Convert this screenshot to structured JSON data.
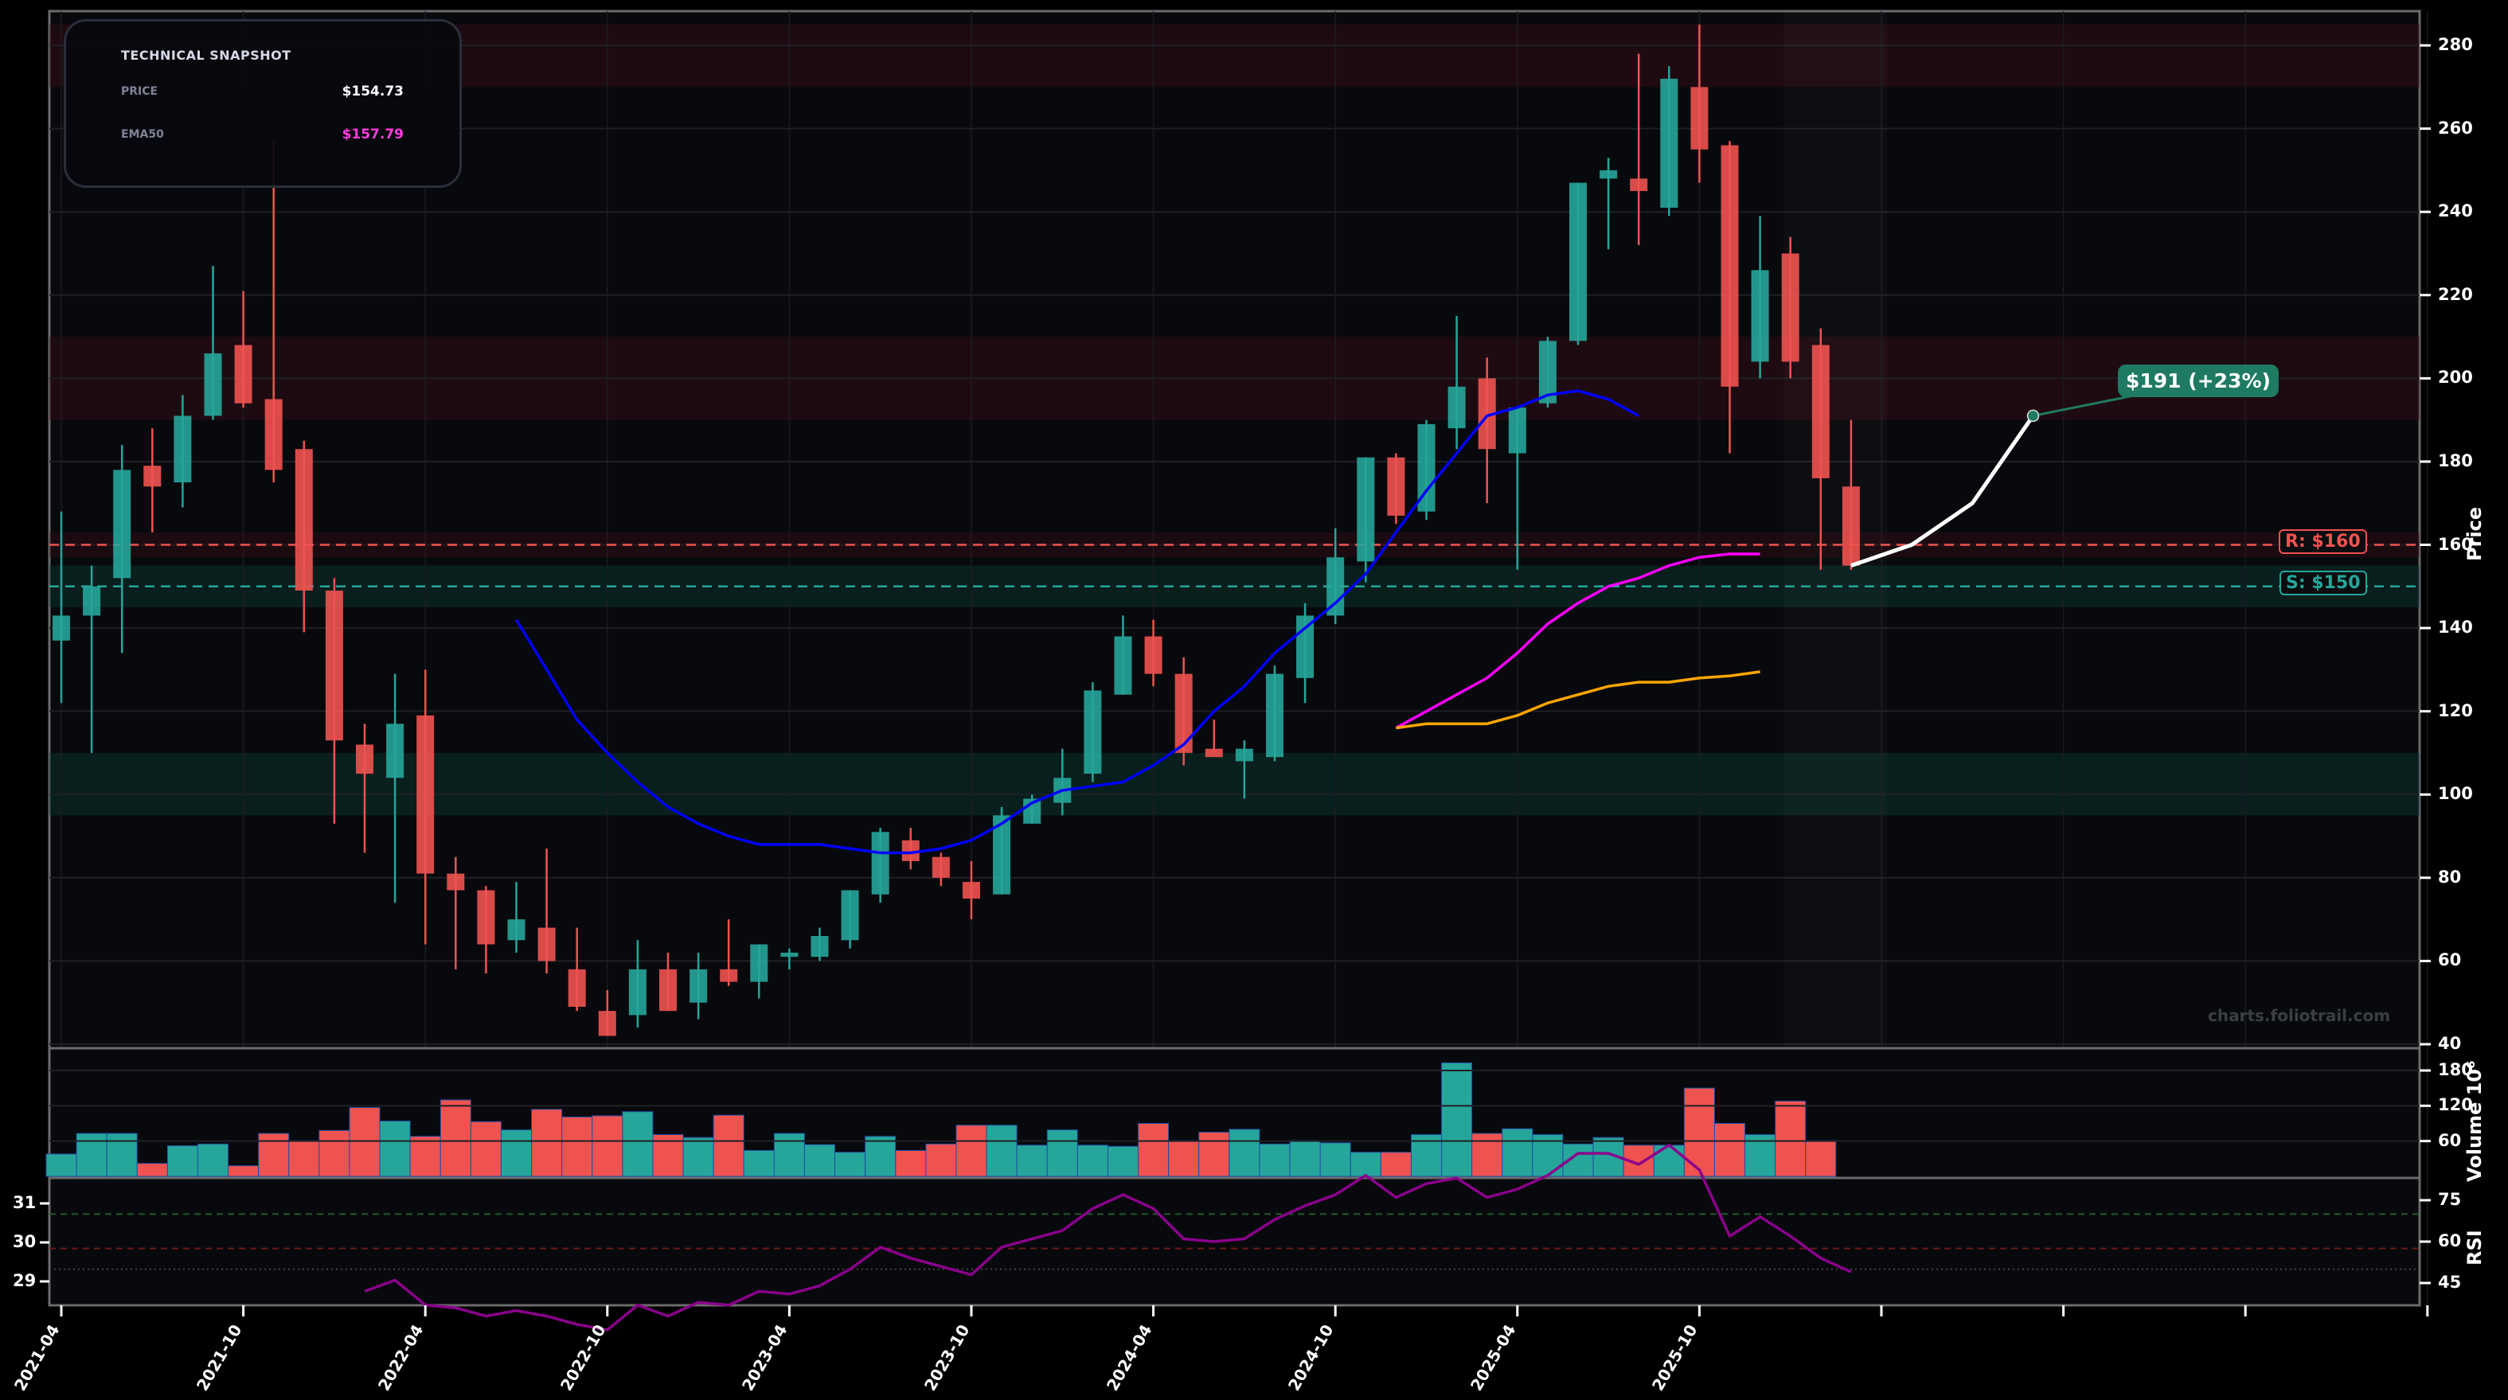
{
  "snapshot": {
    "title": "TECHNICAL SNAPSHOT",
    "price_label": "PRICE",
    "price_value": "$154.73",
    "ema50_label": "EMA50",
    "ema50_value": "$157.79"
  },
  "annotations": {
    "resistance_label": "R: $160",
    "support_label": "S: $150",
    "target_label": "$191 (+23%)",
    "watermark": "charts.foliotrail.com"
  },
  "axes": {
    "price_label": "Price",
    "volume_label": "Volume  10⁶",
    "rsi_label": "RSI",
    "price_ticks": [
      "280",
      "260",
      "240",
      "220",
      "200",
      "180",
      "160",
      "140",
      "120",
      "100",
      "80",
      "60",
      "40"
    ],
    "volume_ticks": [
      "180",
      "120",
      "60"
    ],
    "rsi_right_ticks": [
      "75",
      "60",
      "45"
    ],
    "rsi_left_ticks": [
      "31",
      "30",
      "29"
    ],
    "x_ticks": [
      "2021-04",
      "2021-10",
      "2022-04",
      "2022-10",
      "2023-04",
      "2023-10",
      "2024-04",
      "2024-10",
      "2025-04",
      "2025-10"
    ]
  },
  "colors": {
    "up": "#26a69a",
    "down": "#ef5350",
    "ema_blue": "#0000ff",
    "ema_magenta": "#ff00ff",
    "ema_orange": "#ffa500",
    "rsi": "#8b008b",
    "target": "#1e7a62",
    "background": "#08090d"
  },
  "chart_data": {
    "type": "candlestick",
    "title": "",
    "xlabel": "",
    "ylabel": "Price",
    "ylim": [
      40,
      285
    ],
    "x": [
      "2021-04",
      "2021-05",
      "2021-06",
      "2021-07",
      "2021-08",
      "2021-09",
      "2021-10",
      "2021-11",
      "2021-12",
      "2022-01",
      "2022-02",
      "2022-03",
      "2022-04",
      "2022-05",
      "2022-06",
      "2022-07",
      "2022-08",
      "2022-09",
      "2022-10",
      "2022-11",
      "2022-12",
      "2023-01",
      "2023-02",
      "2023-03",
      "2023-04",
      "2023-05",
      "2023-06",
      "2023-07",
      "2023-08",
      "2023-09",
      "2023-10",
      "2023-11",
      "2023-12",
      "2024-01",
      "2024-02",
      "2024-03",
      "2024-04",
      "2024-05",
      "2024-06",
      "2024-07",
      "2024-08",
      "2024-09",
      "2024-10",
      "2024-11",
      "2024-12",
      "2025-01",
      "2025-02",
      "2025-03",
      "2025-04",
      "2025-05",
      "2025-06",
      "2025-07",
      "2025-08",
      "2025-09",
      "2025-10",
      "2025-11",
      "2025-12",
      "2026-01",
      "2026-02",
      "2026-03"
    ],
    "ohlc": [
      [
        137,
        168,
        122,
        143
      ],
      [
        143,
        155,
        110,
        150
      ],
      [
        152,
        184,
        134,
        178
      ],
      [
        179,
        188,
        163,
        174
      ],
      [
        175,
        196,
        169,
        191
      ],
      [
        191,
        227,
        190,
        206
      ],
      [
        208,
        221,
        193,
        194
      ],
      [
        195,
        257,
        175,
        178
      ],
      [
        183,
        185,
        139,
        149
      ],
      [
        149,
        152,
        93,
        113
      ],
      [
        112,
        117,
        86,
        105
      ],
      [
        104,
        129,
        74,
        117
      ],
      [
        119,
        130,
        64,
        81
      ],
      [
        81,
        85,
        58,
        77
      ],
      [
        77,
        78,
        57,
        64
      ],
      [
        65,
        79,
        62,
        70
      ],
      [
        68,
        87,
        57,
        60
      ],
      [
        58,
        68,
        48,
        49
      ],
      [
        48,
        53,
        42,
        42
      ],
      [
        47,
        65,
        44,
        58
      ],
      [
        58,
        62,
        48,
        48
      ],
      [
        50,
        62,
        46,
        58
      ],
      [
        58,
        70,
        54,
        55
      ],
      [
        55,
        64,
        51,
        64
      ],
      [
        61,
        63,
        58,
        62
      ],
      [
        61,
        68,
        60,
        66
      ],
      [
        65,
        77,
        63,
        77
      ],
      [
        76,
        92,
        74,
        91
      ],
      [
        89,
        92,
        82,
        84
      ],
      [
        85,
        86,
        78,
        80
      ],
      [
        79,
        84,
        70,
        75
      ],
      [
        76,
        97,
        76,
        95
      ],
      [
        93,
        100,
        93,
        99
      ],
      [
        98,
        111,
        95,
        104
      ],
      [
        105,
        127,
        103,
        125
      ],
      [
        124,
        143,
        124,
        138
      ],
      [
        138,
        142,
        126,
        129
      ],
      [
        129,
        133,
        107,
        110
      ],
      [
        111,
        118,
        110,
        109
      ],
      [
        108,
        113,
        99,
        111
      ],
      [
        109,
        131,
        108,
        129
      ],
      [
        128,
        146,
        122,
        143
      ],
      [
        143,
        164,
        141,
        157
      ],
      [
        156,
        181,
        151,
        181
      ],
      [
        181,
        182,
        165,
        167
      ],
      [
        168,
        190,
        166,
        189
      ],
      [
        188,
        215,
        183,
        198
      ],
      [
        200,
        205,
        170,
        183
      ],
      [
        182,
        193,
        154,
        193
      ],
      [
        194,
        210,
        193,
        209
      ],
      [
        209,
        247,
        208,
        247
      ],
      [
        248,
        253,
        231,
        250
      ],
      [
        248,
        278,
        232,
        245
      ],
      [
        241,
        275,
        239,
        272
      ],
      [
        270,
        285,
        247,
        255
      ],
      [
        256,
        257,
        182,
        198
      ],
      [
        204,
        239,
        200,
        226
      ],
      [
        230,
        234,
        200,
        204
      ],
      [
        208,
        212,
        154,
        176
      ],
      [
        174,
        190,
        154,
        155
      ]
    ],
    "series": [
      {
        "name": "EMA (blue)",
        "start": "2022-07",
        "values": [
          142,
          130,
          118,
          110,
          103,
          97,
          93,
          90,
          88,
          88,
          88,
          87,
          86,
          86,
          87,
          89,
          93,
          98,
          101,
          102,
          103,
          107,
          112,
          120,
          126,
          134,
          140,
          146,
          153,
          163,
          173,
          182,
          191,
          193,
          196,
          197,
          195,
          191
        ]
      },
      {
        "name": "EMA50",
        "start": "2024-12",
        "values": [
          116,
          120,
          124,
          128,
          134,
          141,
          146,
          150,
          152,
          155,
          157,
          157.8,
          157.8
        ]
      },
      {
        "name": "EMA (orange)",
        "start": "2024-12",
        "values": [
          116,
          117,
          117,
          117,
          119,
          122,
          124,
          126,
          127,
          127,
          128,
          128.5,
          129.5
        ]
      },
      {
        "name": "Forecast",
        "x": [
          "2026-03",
          "2026-05",
          "2026-07",
          "2026-09"
        ],
        "values": [
          155,
          160,
          170,
          191
        ]
      }
    ],
    "levels": {
      "resistance": 160,
      "support": 150,
      "zones": [
        [
          270,
          285
        ],
        [
          190,
          210
        ],
        [
          145,
          155
        ],
        [
          95,
          110
        ]
      ]
    },
    "volume": {
      "ylabel": "Volume 10^6",
      "ylim": [
        0,
        200
      ],
      "values": [
        38,
        73,
        73,
        22,
        52,
        55,
        18,
        73,
        61,
        78,
        117,
        94,
        68,
        130,
        93,
        79,
        114,
        101,
        103,
        110,
        71,
        66,
        104,
        44,
        73,
        54,
        41,
        68,
        44,
        55,
        87,
        87,
        53,
        79,
        53,
        51,
        90,
        61,
        75,
        80,
        55,
        61,
        57,
        41,
        41,
        71,
        193,
        73,
        81,
        71,
        55,
        66,
        53,
        53,
        150,
        90,
        71,
        128,
        61,
        0
      ]
    },
    "rsi": {
      "ylabel": "RSI",
      "right_ticks": [
        45,
        60,
        75
      ],
      "left_ticks": [
        29,
        30,
        31
      ],
      "start": "2022-02",
      "values": [
        42,
        46,
        37,
        36,
        33,
        35,
        33,
        30,
        28,
        37,
        33,
        38,
        37,
        42,
        41,
        44,
        50,
        58,
        54,
        51,
        48,
        58,
        61,
        64,
        72,
        77,
        72,
        61,
        60,
        61,
        68,
        73,
        77,
        84,
        76,
        81,
        83,
        76,
        79,
        84,
        92,
        92,
        88,
        95,
        86,
        62,
        69,
        62,
        54,
        49
      ]
    }
  }
}
